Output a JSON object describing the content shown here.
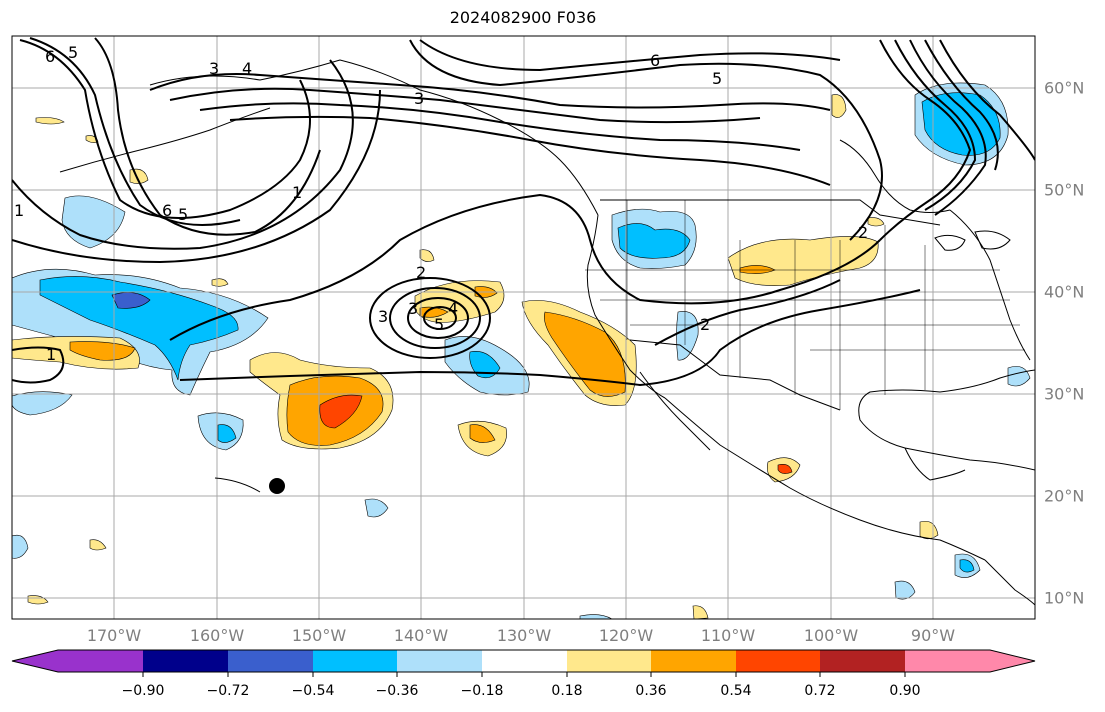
{
  "title": "2024082900 F036",
  "map": {
    "lon_labels": [
      "170°W",
      "160°W",
      "150°W",
      "140°W",
      "130°W",
      "120°W",
      "110°W",
      "100°W",
      "90°W"
    ],
    "lat_labels": [
      "60°N",
      "50°N",
      "40°N",
      "30°N",
      "20°N",
      "10°N"
    ],
    "contour_labels": [
      "6",
      "5",
      "3",
      "4",
      "3",
      "6",
      "5",
      "1",
      "6",
      "5",
      "1",
      "2",
      "3",
      "3",
      "4",
      "5",
      "2",
      "2",
      "1"
    ],
    "marker": "black-dot"
  },
  "colorbar": {
    "tick_labels": [
      "−0.90",
      "−0.72",
      "−0.54",
      "−0.36",
      "−0.18",
      "0.18",
      "0.36",
      "0.54",
      "0.72",
      "0.90"
    ],
    "colors": [
      "#9932cc",
      "#00008b",
      "#3a5fcd",
      "#00bfff",
      "#aee0fa",
      "#ffffff",
      "#ffe88c",
      "#ffa500",
      "#ff4500",
      "#b22222",
      "#ff88aa"
    ]
  }
}
